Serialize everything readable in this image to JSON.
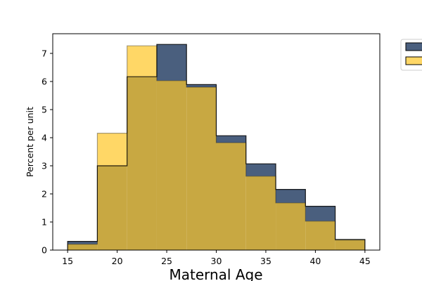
{
  "chart_data": {
    "type": "histogram",
    "title": "",
    "xlabel": "Maternal Age",
    "ylabel": "Percent per unit",
    "xlim": [
      13.5,
      46.5
    ],
    "ylim": [
      0,
      7.7
    ],
    "xticks": [
      15,
      20,
      25,
      30,
      35,
      40,
      45
    ],
    "yticks": [
      0,
      1,
      2,
      3,
      4,
      5,
      6,
      7
    ],
    "bins": [
      15,
      18,
      21,
      24,
      27,
      30,
      33,
      36,
      39,
      42,
      45
    ],
    "grid": false,
    "legend": "outside-top-right",
    "series": [
      {
        "color": "#4a5f7e",
        "values": [
          0.31,
          3.0,
          6.17,
          7.32,
          5.89,
          4.07,
          3.07,
          2.16,
          1.56,
          0.38
        ]
      },
      {
        "color": "#ffd766",
        "values": [
          0.21,
          4.16,
          7.27,
          6.03,
          5.8,
          3.82,
          2.63,
          1.68,
          1.03,
          0.36
        ]
      }
    ],
    "overlap_color": "#c8a842"
  }
}
